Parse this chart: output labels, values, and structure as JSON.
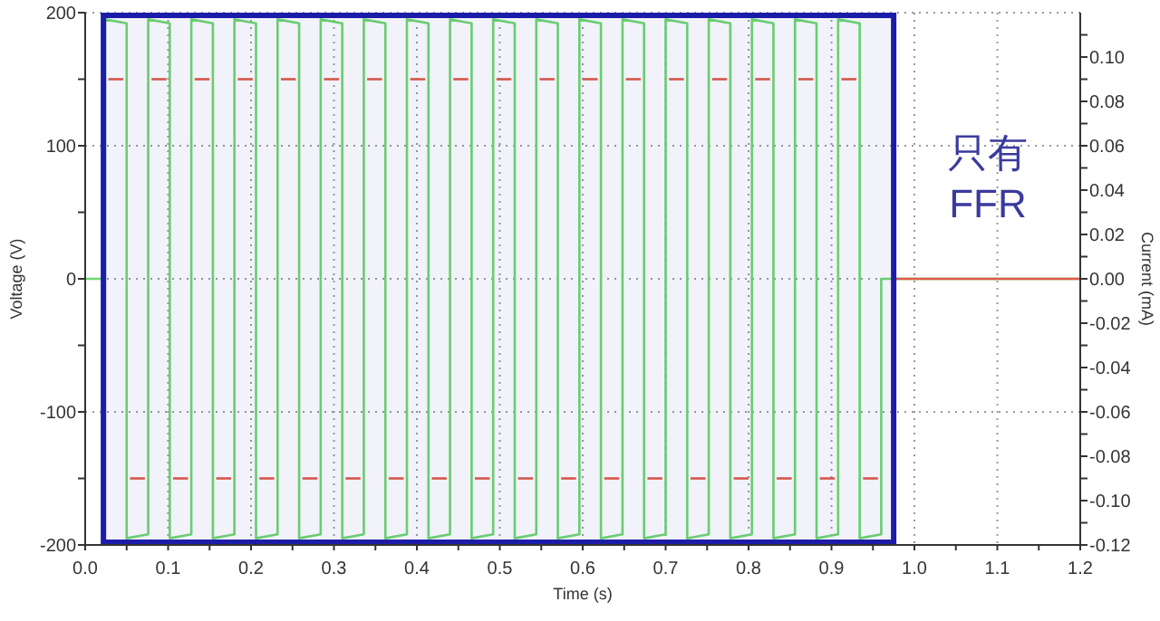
{
  "chart_data": {
    "type": "line",
    "xlabel": "Time (s)",
    "ylabel": "Voltage (V)",
    "y2label": "Current (mA)",
    "annotations": [
      "只有\nFFR"
    ],
    "xlim": [
      0,
      1.2
    ],
    "xticks": [
      {
        "value": 0,
        "label": "0.0"
      },
      {
        "value": 0.05,
        "label": null
      },
      0.1,
      {
        "value": 0.15,
        "label": null
      },
      0.2,
      {
        "value": 0.25,
        "label": null
      },
      0.3,
      {
        "value": 0.35,
        "label": null
      },
      0.4,
      {
        "value": 0.45,
        "label": null
      },
      0.5,
      {
        "value": 0.55,
        "label": null
      },
      0.6,
      {
        "value": 0.65,
        "label": null
      },
      0.7,
      {
        "value": 0.75,
        "label": null
      },
      0.8,
      {
        "value": 0.85,
        "label": null
      },
      0.9,
      {
        "value": 0.95,
        "label": null
      },
      {
        "value": 1,
        "label": "1.0"
      },
      {
        "value": 1.05,
        "label": null
      },
      1.1,
      {
        "value": 1.15,
        "label": null
      },
      1.2
    ],
    "ylim": [
      -200,
      200
    ],
    "yticks": [
      -200,
      {
        "value": -150,
        "label": null
      },
      -100,
      {
        "value": -50,
        "label": null
      },
      0,
      {
        "value": 50,
        "label": null
      },
      100,
      {
        "value": 150,
        "label": null
      },
      200
    ],
    "y2lim": [
      -0.12,
      0.12
    ],
    "y2ticks": [
      -0.12,
      {
        "value": -0.11,
        "label": null
      },
      {
        "value": -0.1,
        "label": "-0.10"
      },
      {
        "value": -0.09,
        "label": null
      },
      -0.08,
      {
        "value": -0.07,
        "label": null
      },
      -0.06,
      {
        "value": -0.05,
        "label": null
      },
      -0.04,
      {
        "value": -0.03,
        "label": null
      },
      -0.02,
      {
        "value": -0.01,
        "label": null
      },
      {
        "value": 0,
        "label": "0.00"
      },
      {
        "value": 0.01,
        "label": null
      },
      0.02,
      {
        "value": 0.03,
        "label": null
      },
      0.04,
      {
        "value": 0.05,
        "label": null
      },
      0.06,
      {
        "value": 0.07,
        "label": null
      },
      0.08,
      {
        "value": 0.09,
        "label": null
      },
      {
        "value": 0.1,
        "label": "0.10"
      },
      {
        "value": 0.11,
        "label": null
      }
    ],
    "grid": true,
    "line_style": "solid",
    "bands": [
      {
        "axis": "x",
        "from": 0.022,
        "to": 0.975,
        "color": "#1c1ca8"
      }
    ],
    "series": [
      {
        "color": "#6ed86e",
        "x": [
          0,
          0.024,
          0.024,
          0.05,
          0.05,
          0.076,
          0.076,
          0.102,
          0.102,
          0.128,
          0.128,
          0.154,
          0.154,
          0.18,
          0.18,
          0.206,
          0.206,
          0.232,
          0.232,
          0.258,
          0.258,
          0.284,
          0.284,
          0.31,
          0.31,
          0.336,
          0.336,
          0.362,
          0.362,
          0.388,
          0.388,
          0.414,
          0.414,
          0.44,
          0.44,
          0.466,
          0.466,
          0.492,
          0.492,
          0.518,
          0.518,
          0.544,
          0.544,
          0.57,
          0.57,
          0.596,
          0.596,
          0.622,
          0.622,
          0.648,
          0.648,
          0.674,
          0.674,
          0.7,
          0.7,
          0.726,
          0.726,
          0.752,
          0.752,
          0.778,
          0.778,
          0.804,
          0.804,
          0.83,
          0.83,
          0.856,
          0.856,
          0.882,
          0.882,
          0.908,
          0.908,
          0.934,
          0.934,
          0.96,
          0.96,
          1.2
        ],
        "values": [
          0,
          0,
          195,
          192,
          -195,
          -192,
          195,
          192,
          -195,
          -192,
          195,
          192,
          -195,
          -192,
          195,
          192,
          -195,
          -192,
          195,
          192,
          -195,
          -192,
          195,
          192,
          -195,
          -192,
          195,
          192,
          -195,
          -192,
          195,
          192,
          -195,
          -192,
          195,
          192,
          -195,
          -192,
          195,
          192,
          -195,
          -192,
          195,
          192,
          -195,
          -192,
          195,
          192,
          -195,
          -192,
          195,
          192,
          -195,
          -192,
          195,
          192,
          -195,
          -192,
          195,
          192,
          -195,
          -192,
          195,
          192,
          -195,
          -192,
          195,
          192,
          -195,
          -192,
          195,
          192,
          -195,
          -192,
          0,
          0
        ]
      },
      {
        "color": "#e05a46",
        "axis": "y2",
        "x": [
          0.028,
          0.046
        ],
        "values": [
          0.09,
          0.09
        ]
      },
      {
        "color": "#e05a46",
        "axis": "y2",
        "x": [
          0.054,
          0.072
        ],
        "values": [
          -0.09,
          -0.09
        ]
      },
      {
        "color": "#e05a46",
        "axis": "y2",
        "x": [
          0.08,
          0.098
        ],
        "values": [
          0.09,
          0.09
        ]
      },
      {
        "color": "#e05a46",
        "axis": "y2",
        "x": [
          0.106,
          0.124
        ],
        "values": [
          -0.09,
          -0.09
        ]
      },
      {
        "color": "#e05a46",
        "axis": "y2",
        "x": [
          0.132,
          0.15
        ],
        "values": [
          0.09,
          0.09
        ]
      },
      {
        "color": "#e05a46",
        "axis": "y2",
        "x": [
          0.158,
          0.176
        ],
        "values": [
          -0.09,
          -0.09
        ]
      },
      {
        "color": "#e05a46",
        "axis": "y2",
        "x": [
          0.184,
          0.202
        ],
        "values": [
          0.09,
          0.09
        ]
      },
      {
        "color": "#e05a46",
        "axis": "y2",
        "x": [
          0.21,
          0.228
        ],
        "values": [
          -0.09,
          -0.09
        ]
      },
      {
        "color": "#e05a46",
        "axis": "y2",
        "x": [
          0.236,
          0.254
        ],
        "values": [
          0.09,
          0.09
        ]
      },
      {
        "color": "#e05a46",
        "axis": "y2",
        "x": [
          0.262,
          0.28
        ],
        "values": [
          -0.09,
          -0.09
        ]
      },
      {
        "color": "#e05a46",
        "axis": "y2",
        "x": [
          0.288,
          0.306
        ],
        "values": [
          0.09,
          0.09
        ]
      },
      {
        "color": "#e05a46",
        "axis": "y2",
        "x": [
          0.314,
          0.332
        ],
        "values": [
          -0.09,
          -0.09
        ]
      },
      {
        "color": "#e05a46",
        "axis": "y2",
        "x": [
          0.34,
          0.358
        ],
        "values": [
          0.09,
          0.09
        ]
      },
      {
        "color": "#e05a46",
        "axis": "y2",
        "x": [
          0.366,
          0.384
        ],
        "values": [
          -0.09,
          -0.09
        ]
      },
      {
        "color": "#e05a46",
        "axis": "y2",
        "x": [
          0.392,
          0.41
        ],
        "values": [
          0.09,
          0.09
        ]
      },
      {
        "color": "#e05a46",
        "axis": "y2",
        "x": [
          0.418,
          0.436
        ],
        "values": [
          -0.09,
          -0.09
        ]
      },
      {
        "color": "#e05a46",
        "axis": "y2",
        "x": [
          0.444,
          0.462
        ],
        "values": [
          0.09,
          0.09
        ]
      },
      {
        "color": "#e05a46",
        "axis": "y2",
        "x": [
          0.47,
          0.488
        ],
        "values": [
          -0.09,
          -0.09
        ]
      },
      {
        "color": "#e05a46",
        "axis": "y2",
        "x": [
          0.496,
          0.514
        ],
        "values": [
          0.09,
          0.09
        ]
      },
      {
        "color": "#e05a46",
        "axis": "y2",
        "x": [
          0.522,
          0.54
        ],
        "values": [
          -0.09,
          -0.09
        ]
      },
      {
        "color": "#e05a46",
        "axis": "y2",
        "x": [
          0.548,
          0.566
        ],
        "values": [
          0.09,
          0.09
        ]
      },
      {
        "color": "#e05a46",
        "axis": "y2",
        "x": [
          0.574,
          0.592
        ],
        "values": [
          -0.09,
          -0.09
        ]
      },
      {
        "color": "#e05a46",
        "axis": "y2",
        "x": [
          0.6,
          0.618
        ],
        "values": [
          0.09,
          0.09
        ]
      },
      {
        "color": "#e05a46",
        "axis": "y2",
        "x": [
          0.626,
          0.644
        ],
        "values": [
          -0.09,
          -0.09
        ]
      },
      {
        "color": "#e05a46",
        "axis": "y2",
        "x": [
          0.652,
          0.67
        ],
        "values": [
          0.09,
          0.09
        ]
      },
      {
        "color": "#e05a46",
        "axis": "y2",
        "x": [
          0.678,
          0.696
        ],
        "values": [
          -0.09,
          -0.09
        ]
      },
      {
        "color": "#e05a46",
        "axis": "y2",
        "x": [
          0.704,
          0.722
        ],
        "values": [
          0.09,
          0.09
        ]
      },
      {
        "color": "#e05a46",
        "axis": "y2",
        "x": [
          0.73,
          0.748
        ],
        "values": [
          -0.09,
          -0.09
        ]
      },
      {
        "color": "#e05a46",
        "axis": "y2",
        "x": [
          0.756,
          0.774
        ],
        "values": [
          0.09,
          0.09
        ]
      },
      {
        "color": "#e05a46",
        "axis": "y2",
        "x": [
          0.782,
          0.8
        ],
        "values": [
          -0.09,
          -0.09
        ]
      },
      {
        "color": "#e05a46",
        "axis": "y2",
        "x": [
          0.808,
          0.826
        ],
        "values": [
          0.09,
          0.09
        ]
      },
      {
        "color": "#e05a46",
        "axis": "y2",
        "x": [
          0.834,
          0.852
        ],
        "values": [
          -0.09,
          -0.09
        ]
      },
      {
        "color": "#e05a46",
        "axis": "y2",
        "x": [
          0.86,
          0.878
        ],
        "values": [
          0.09,
          0.09
        ]
      },
      {
        "color": "#e05a46",
        "axis": "y2",
        "x": [
          0.886,
          0.904
        ],
        "values": [
          -0.09,
          -0.09
        ]
      },
      {
        "color": "#e05a46",
        "axis": "y2",
        "x": [
          0.912,
          0.93
        ],
        "values": [
          0.09,
          0.09
        ]
      },
      {
        "color": "#e05a46",
        "axis": "y2",
        "x": [
          0.938,
          0.956
        ],
        "values": [
          -0.09,
          -0.09
        ]
      },
      {
        "color": "#e05a46",
        "axis": "y2",
        "x": [
          0.975,
          1.2
        ],
        "values": [
          0,
          0
        ]
      }
    ]
  }
}
